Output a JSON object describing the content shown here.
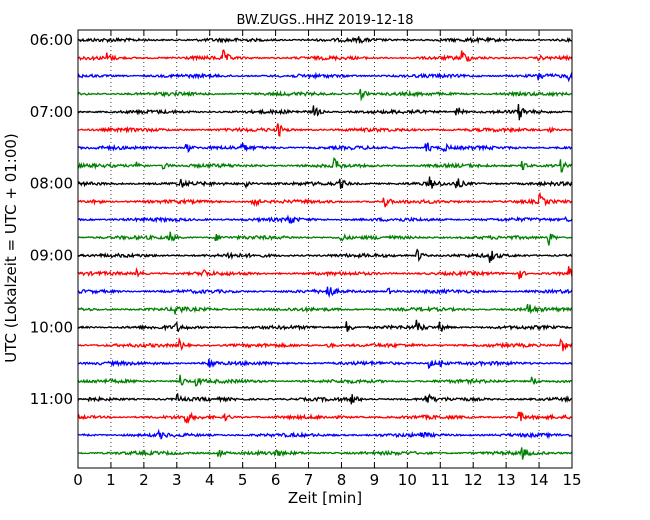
{
  "chart_data": {
    "type": "line",
    "title": "BW.ZUGS..HHZ 2019-12-18",
    "xlabel": "Zeit  [min]",
    "ylabel": "UTC (Lokalzeit = UTC + 01:00)",
    "xlim": [
      0,
      15
    ],
    "x_ticks": [
      "0",
      "1",
      "2",
      "3",
      "4",
      "5",
      "6",
      "7",
      "8",
      "9",
      "10",
      "11",
      "12",
      "13",
      "14",
      "15"
    ],
    "y_tick_labels": [
      "06:00",
      "07:00",
      "08:00",
      "09:00",
      "10:00",
      "11:00"
    ],
    "grid": "vertical dotted",
    "trace_colors": [
      "#000000",
      "#ff0000",
      "#0000ff",
      "#008000"
    ],
    "traces": [
      {
        "start": "06:00",
        "events": [
          [
            8.5,
            3
          ]
        ]
      },
      {
        "start": "06:15",
        "events": [
          [
            0.9,
            5
          ],
          [
            4.4,
            8
          ],
          [
            11.7,
            7
          ],
          [
            14.0,
            2
          ]
        ]
      },
      {
        "start": "06:30",
        "events": [
          [
            14.0,
            4
          ],
          [
            14.9,
            3
          ]
        ]
      },
      {
        "start": "06:45",
        "events": [
          [
            8.6,
            5
          ]
        ]
      },
      {
        "start": "07:00",
        "events": [
          [
            7.2,
            6
          ],
          [
            10.2,
            3
          ],
          [
            11.5,
            7
          ],
          [
            13.4,
            7
          ]
        ]
      },
      {
        "start": "07:15",
        "events": [
          [
            6.1,
            6
          ],
          [
            14.3,
            3
          ]
        ]
      },
      {
        "start": "07:30",
        "events": [
          [
            3.3,
            5
          ],
          [
            10.6,
            6
          ],
          [
            11.1,
            5
          ],
          [
            5.0,
            3
          ]
        ]
      },
      {
        "start": "07:45",
        "events": [
          [
            1.8,
            6
          ],
          [
            7.8,
            6
          ],
          [
            13.5,
            6
          ],
          [
            2.6,
            4
          ],
          [
            14.7,
            5
          ]
        ]
      },
      {
        "start": "08:00",
        "events": [
          [
            3.1,
            5
          ],
          [
            5.1,
            4
          ],
          [
            10.7,
            6
          ],
          [
            11.5,
            6
          ],
          [
            8.0,
            4
          ]
        ]
      },
      {
        "start": "08:15",
        "events": [
          [
            5.3,
            8
          ],
          [
            9.3,
            6
          ],
          [
            14.0,
            8
          ],
          [
            0.5,
            3
          ]
        ]
      },
      {
        "start": "08:30",
        "events": [
          [
            6.4,
            6
          ],
          [
            14.8,
            3
          ]
        ]
      },
      {
        "start": "08:45",
        "events": [
          [
            2.8,
            5
          ],
          [
            8.0,
            4
          ],
          [
            14.3,
            8
          ],
          [
            4.2,
            3
          ]
        ]
      },
      {
        "start": "09:00",
        "events": [
          [
            10.3,
            8
          ],
          [
            12.5,
            7
          ],
          [
            4.6,
            3
          ]
        ]
      },
      {
        "start": "09:15",
        "events": [
          [
            1.8,
            4
          ],
          [
            3.8,
            4
          ],
          [
            13.4,
            6
          ],
          [
            14.9,
            6
          ]
        ]
      },
      {
        "start": "09:30",
        "events": [
          [
            7.6,
            7
          ],
          [
            9.4,
            4
          ]
        ]
      },
      {
        "start": "09:45",
        "events": [
          [
            3.0,
            5
          ],
          [
            13.7,
            6
          ]
        ]
      },
      {
        "start": "10:00",
        "events": [
          [
            8.2,
            6
          ],
          [
            10.3,
            6
          ],
          [
            11.0,
            5
          ],
          [
            3.0,
            4
          ]
        ]
      },
      {
        "start": "10:15",
        "events": [
          [
            3.1,
            5
          ],
          [
            14.7,
            7
          ],
          [
            7.6,
            3
          ]
        ]
      },
      {
        "start": "10:30",
        "events": [
          [
            4.0,
            6
          ],
          [
            10.7,
            5
          ],
          [
            11.0,
            5
          ]
        ]
      },
      {
        "start": "10:45",
        "events": [
          [
            3.1,
            7
          ],
          [
            3.6,
            5
          ],
          [
            13.8,
            5
          ]
        ]
      },
      {
        "start": "11:00",
        "events": [
          [
            3.0,
            5
          ],
          [
            8.3,
            6
          ],
          [
            10.6,
            6
          ]
        ]
      },
      {
        "start": "11:15",
        "events": [
          [
            3.3,
            5
          ],
          [
            13.4,
            6
          ],
          [
            4.5,
            3
          ]
        ]
      },
      {
        "start": "11:30",
        "events": [
          [
            10.4,
            4
          ],
          [
            2.5,
            3
          ]
        ]
      },
      {
        "start": "11:45",
        "events": [
          [
            4.3,
            4
          ],
          [
            13.5,
            5
          ],
          [
            6.0,
            3
          ]
        ]
      }
    ]
  }
}
